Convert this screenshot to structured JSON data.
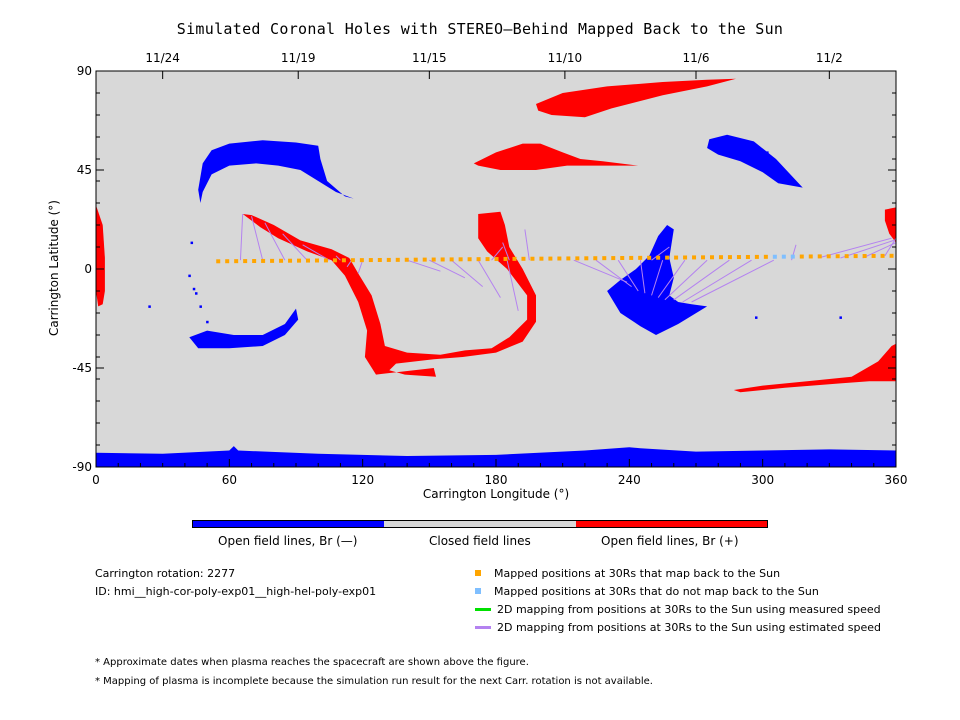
{
  "colors": {
    "open_negative": "#0000ff",
    "open_positive": "#ff0000",
    "closed": "#d8d8d8",
    "mapped_back": "#ffa500",
    "not_mapped_back": "#7fbfff",
    "measured_speed_line": "#00e000",
    "estimated_speed_line": "#b482f0"
  },
  "chart_data": {
    "type": "map",
    "title": "Simulated Coronal Holes with STEREO—Behind Mapped Back to the Sun",
    "xlabel": "Carrington Longitude (°)",
    "ylabel": "Carrington Latitude (°)",
    "xlim": [
      0,
      360
    ],
    "ylim": [
      -90,
      90
    ],
    "x_ticks": [
      0,
      60,
      120,
      180,
      240,
      300,
      360
    ],
    "y_ticks": [
      90,
      45,
      0,
      -45,
      -90
    ],
    "top_axis": {
      "date_labels": [
        {
          "label": "11/24",
          "lon": 30
        },
        {
          "label": "11/19",
          "lon": 91
        },
        {
          "label": "11/15",
          "lon": 150
        },
        {
          "label": "11/10",
          "lon": 211
        },
        {
          "label": "11/6",
          "lon": 270
        },
        {
          "label": "11/2",
          "lon": 330
        }
      ]
    },
    "mapped_positions_30Rs": {
      "lon_start": 55,
      "lon_end": 358,
      "lat_start": 3.5,
      "lat_end": 6.0,
      "count": 76,
      "not_mapped_lons": [
        307.5,
        314.0
      ]
    },
    "mapping_lines_estimated_speed": [
      {
        "from": [
          65,
          4
        ],
        "to": [
          66,
          25
        ]
      },
      {
        "from": [
          75,
          4
        ],
        "to": [
          70,
          24
        ]
      },
      {
        "from": [
          85,
          4
        ],
        "to": [
          76,
          21
        ]
      },
      {
        "from": [
          95,
          4
        ],
        "to": [
          84,
          16
        ]
      },
      {
        "from": [
          105,
          4
        ],
        "to": [
          93,
          11
        ]
      },
      {
        "from": [
          110,
          4
        ],
        "to": [
          108,
          6
        ]
      },
      {
        "from": [
          115,
          4
        ],
        "to": [
          113,
          1
        ]
      },
      {
        "from": [
          120,
          4
        ],
        "to": [
          118,
          -2
        ]
      },
      {
        "from": [
          140,
          4
        ],
        "to": [
          155,
          -1
        ]
      },
      {
        "from": [
          150,
          4
        ],
        "to": [
          166,
          -4
        ]
      },
      {
        "from": [
          160,
          4
        ],
        "to": [
          174,
          -8
        ]
      },
      {
        "from": [
          172,
          4
        ],
        "to": [
          182,
          -13
        ]
      },
      {
        "from": [
          185,
          4
        ],
        "to": [
          190,
          -19
        ]
      },
      {
        "from": [
          178,
          4
        ],
        "to": [
          183,
          10
        ]
      },
      {
        "from": [
          186,
          4
        ],
        "to": [
          183,
          12
        ]
      },
      {
        "from": [
          195,
          4
        ],
        "to": [
          193,
          18
        ]
      },
      {
        "from": [
          215,
          4
        ],
        "to": [
          239,
          -6
        ]
      },
      {
        "from": [
          225,
          4
        ],
        "to": [
          241,
          -8
        ]
      },
      {
        "from": [
          235,
          4
        ],
        "to": [
          244,
          -10
        ]
      },
      {
        "from": [
          245,
          4
        ],
        "to": [
          247,
          -11
        ]
      },
      {
        "from": [
          255,
          4
        ],
        "to": [
          250,
          -12
        ]
      },
      {
        "from": [
          265,
          4
        ],
        "to": [
          253,
          -13
        ]
      },
      {
        "from": [
          275,
          4
        ],
        "to": [
          256,
          -14
        ]
      },
      {
        "from": [
          285,
          4
        ],
        "to": [
          260,
          -14
        ]
      },
      {
        "from": [
          295,
          4
        ],
        "to": [
          264,
          -15
        ]
      },
      {
        "from": [
          305,
          4
        ],
        "to": [
          268,
          -15
        ]
      },
      {
        "from": [
          250,
          4
        ],
        "to": [
          258,
          10
        ]
      },
      {
        "from": [
          313,
          4
        ],
        "to": [
          315,
          11
        ]
      },
      {
        "from": [
          325,
          5
        ],
        "to": [
          358,
          14
        ]
      },
      {
        "from": [
          335,
          5
        ],
        "to": [
          359,
          13
        ]
      },
      {
        "from": [
          345,
          5
        ],
        "to": [
          360,
          12
        ]
      },
      {
        "from": [
          355,
          6
        ],
        "to": [
          360,
          14
        ]
      }
    ]
  },
  "colorbar": {
    "labels": [
      "Open field lines, Br (—)",
      "Closed field lines",
      "Open field lines, Br (+)"
    ]
  },
  "info": {
    "rotation": "Carrington rotation: 2277",
    "id": "ID: hmi__high-cor-poly-exp01__high-hel-poly-exp01"
  },
  "legend": [
    {
      "label": "Mapped positions at 30Rs that map back to the Sun",
      "kind": "square",
      "color": "#ffa500"
    },
    {
      "label": "Mapped positions at 30Rs that do not map back to the Sun",
      "kind": "square",
      "color": "#7fbfff"
    },
    {
      "label": "2D mapping from positions at 30Rs to the Sun using measured speed",
      "kind": "line",
      "color": "#00e000"
    },
    {
      "label": "2D mapping from positions at 30Rs to the Sun using estimated speed",
      "kind": "line",
      "color": "#b482f0"
    }
  ],
  "notes": [
    "* Approximate dates when plasma reaches the spacecraft are shown above the figure.",
    "* Mapping of plasma is incomplete because the simulation run result for the next Carr. rotation is not available."
  ]
}
